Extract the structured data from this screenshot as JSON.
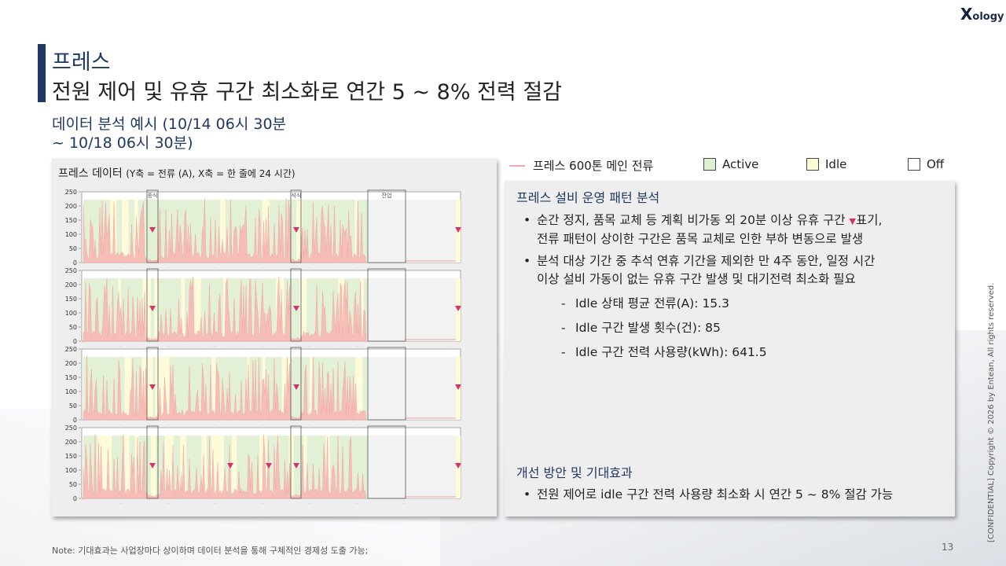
{
  "logo": {
    "mark": "X",
    "text": "ology"
  },
  "header": {
    "title_line1": "프레스",
    "title_line2": "전원 제어 및 유휴 구간 최소화로 연간 5 ~ 8% 전력 절감",
    "subtitle_line1": "데이터 분석 예시 (10/14 06시 30분",
    "subtitle_line2": "~ 10/18 06시 30분)"
  },
  "left_panel": {
    "title_main": "프레스 데이터 ",
    "title_small": "(Y축 = 전류 (A), X축 = 한 줄에 24 시간)"
  },
  "legend": {
    "line_label": "프레스 600톤 메인 전류",
    "active_label": "Active",
    "idle_label": "Idle",
    "off_label": "Off"
  },
  "colors": {
    "title_bar": "#1f3864",
    "current_line": "#f4a9a8",
    "active": "#dff0d0",
    "idle": "#fffbd6",
    "off": "#ffffff",
    "marker": "#d6336c"
  },
  "right_panel": {
    "heading1": "프레스 설비 운영 패턴 분석",
    "bullet1_line1_a": "순간 정지, 품목 교체 등 계획 비가동 외 20분 이상 유휴 구간 ",
    "bullet1_line1_marker": "▼",
    "bullet1_line1_b": "표기,",
    "bullet1_line2": "전류 패턴이 상이한 구간은 품목 교체로 인한 부하 변동으로 발생",
    "bullet2_line1": "분석 대상 기간 중 추석 연휴 기간을 제외한 만 4주 동안, 일정 시간",
    "bullet2_line2": "이상 설비 가동이 없는 유휴 구간 발생 및 대기전력 최소화 필요",
    "stats": [
      "Idle 상태 평균 전류(A): 15.3",
      "Idle 구간 발생 횟수(건): 85",
      "Idle 구간 전력 사용량(kWh): 641.5"
    ],
    "heading2": "개선 방안 및 기대효과",
    "bullet3": "전원 제어로 idle 구간 전력 사용량 최소화 시 연간 5 ~ 8% 절감 가능"
  },
  "chart_data": {
    "type": "area",
    "y_ticks": [
      "250",
      "200",
      "150",
      "100",
      "50",
      "0"
    ],
    "ylim": [
      0,
      250
    ],
    "panel_labels": [
      "중식",
      "석식",
      "잔업"
    ],
    "rows": 4,
    "series": [
      {
        "name": "프레스 600톤 메인 전류"
      }
    ]
  },
  "footer": {
    "note": "Note: 기대효과는 사업장마다 상이하며 데이터 분석을 통해 구체적인 경제성 도출 가능;",
    "page": "13",
    "confidential": "[CONFIDENTIAL] Copyright © 2026 by Entean, All rights reserved."
  }
}
